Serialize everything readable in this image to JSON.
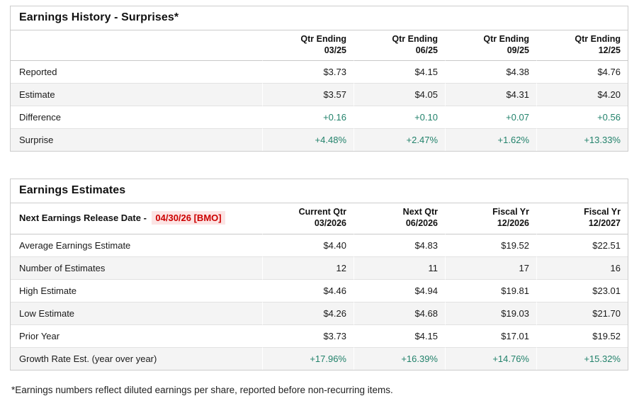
{
  "colors": {
    "green": "#22826b",
    "red": "#cc0000",
    "red_highlight_bg": "#fce4e4",
    "stripe_row_bg": "#f4f4f4",
    "table_border": "#cccccc"
  },
  "earnings_history": {
    "title": "Earnings History - Surprises*",
    "columns": [
      {
        "line1": "Qtr Ending",
        "line2": "03/25"
      },
      {
        "line1": "Qtr Ending",
        "line2": "06/25"
      },
      {
        "line1": "Qtr Ending",
        "line2": "09/25"
      },
      {
        "line1": "Qtr Ending",
        "line2": "12/25"
      }
    ],
    "rows": [
      {
        "label": "Reported",
        "values": [
          "$3.73",
          "$4.15",
          "$4.38",
          "$4.76"
        ],
        "green": false
      },
      {
        "label": "Estimate",
        "values": [
          "$3.57",
          "$4.05",
          "$4.31",
          "$4.20"
        ],
        "green": false
      },
      {
        "label": "Difference",
        "values": [
          "+0.16",
          "+0.10",
          "+0.07",
          "+0.56"
        ],
        "green": true
      },
      {
        "label": "Surprise",
        "values": [
          "+4.48%",
          "+2.47%",
          "+1.62%",
          "+13.33%"
        ],
        "green": true
      }
    ]
  },
  "earnings_estimates": {
    "title": "Earnings Estimates",
    "release_label": "Next Earnings Release Date -",
    "release_date": "04/30/26 [BMO]",
    "columns": [
      {
        "line1": "Current Qtr",
        "line2": "03/2026"
      },
      {
        "line1": "Next Qtr",
        "line2": "06/2026"
      },
      {
        "line1": "Fiscal Yr",
        "line2": "12/2026"
      },
      {
        "line1": "Fiscal Yr",
        "line2": "12/2027"
      }
    ],
    "rows": [
      {
        "label": "Average Earnings Estimate",
        "values": [
          "$4.40",
          "$4.83",
          "$19.52",
          "$22.51"
        ],
        "green": false
      },
      {
        "label": "Number of Estimates",
        "values": [
          "12",
          "11",
          "17",
          "16"
        ],
        "green": false
      },
      {
        "label": "High Estimate",
        "values": [
          "$4.46",
          "$4.94",
          "$19.81",
          "$23.01"
        ],
        "green": false
      },
      {
        "label": "Low Estimate",
        "values": [
          "$4.26",
          "$4.68",
          "$19.03",
          "$21.70"
        ],
        "green": false
      },
      {
        "label": "Prior Year",
        "values": [
          "$3.73",
          "$4.15",
          "$17.01",
          "$19.52"
        ],
        "green": false
      },
      {
        "label": "Growth Rate Est. (year over year)",
        "values": [
          "+17.96%",
          "+16.39%",
          "+14.76%",
          "+15.32%"
        ],
        "green": true
      }
    ]
  },
  "footnote": "*Earnings numbers reflect diluted earnings per share, reported before non-recurring items."
}
